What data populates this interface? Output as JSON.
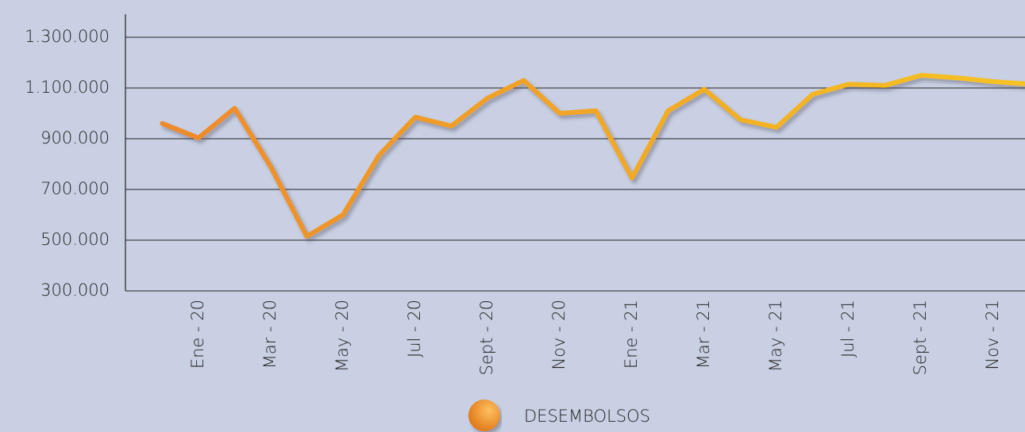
{
  "chart_data": {
    "type": "line",
    "categories": [
      null,
      "Ene - 20",
      null,
      "Mar - 20",
      null,
      "May - 20",
      null,
      "Jul - 20",
      null,
      "Sept - 20",
      null,
      "Nov - 20",
      null,
      "Ene - 21",
      null,
      "Mar - 21",
      null,
      "May - 21",
      null,
      "Jul - 21",
      null,
      "Sept - 21",
      null,
      "Nov - 21",
      null
    ],
    "series": [
      {
        "name": "DESEMBOLSOS",
        "color": "#f2a22c",
        "values": [
          960000,
          903000,
          1020000,
          790000,
          515000,
          600000,
          835000,
          985000,
          950000,
          1060000,
          1130000,
          1000000,
          1010000,
          745000,
          1010000,
          1095000,
          975000,
          945000,
          1075000,
          1115000,
          1110000,
          1150000,
          1140000,
          1125000,
          1115000
        ]
      }
    ],
    "ylim": [
      300000,
      1400000
    ],
    "yticks": [
      {
        "value": 300000,
        "label": "300.000"
      },
      {
        "value": 500000,
        "label": "500.000"
      },
      {
        "value": 700000,
        "label": "700.000"
      },
      {
        "value": 900000,
        "label": "900.000"
      },
      {
        "value": 1100000,
        "label": "1.100.000"
      },
      {
        "value": 1300000,
        "label": "1.300.000"
      }
    ],
    "grid": true
  }
}
